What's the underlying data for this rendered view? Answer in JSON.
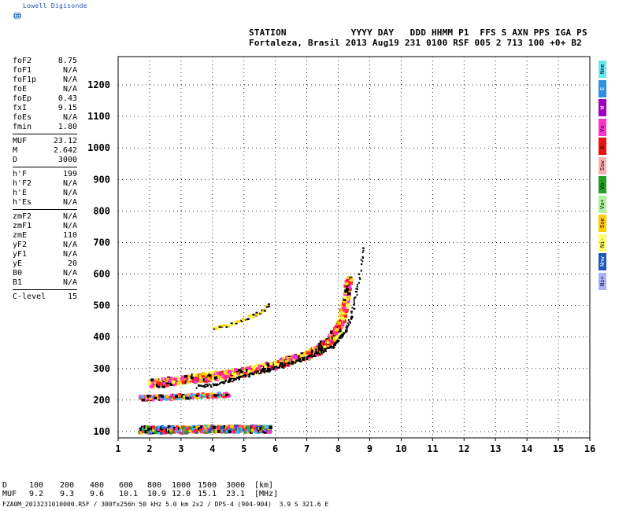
{
  "brand": {
    "name": "Lowell Digisonde",
    "globe_icon": "globe-icon"
  },
  "header": {
    "line1": "STATION            YYYY DAY   DDD HHMM P1  FFS S AXN PPS IGA PS",
    "line2": "Fortaleza, Brasil 2013 Aug19 231 0100 RSF 005 2 713 100 +0+ B2"
  },
  "params": [
    {
      "key": "foF2",
      "value": "8.75"
    },
    {
      "key": "foF1",
      "value": "N/A"
    },
    {
      "key": "foF1p",
      "value": "N/A"
    },
    {
      "key": "foE",
      "value": "N/A"
    },
    {
      "key": "foEp",
      "value": "0.43"
    },
    {
      "key": "fxI",
      "value": "9.15"
    },
    {
      "key": "foEs",
      "value": "N/A"
    },
    {
      "key": "fmin",
      "value": "1.80"
    },
    {
      "key": "SEP"
    },
    {
      "key": "MUF",
      "value": "23.12"
    },
    {
      "key": "M",
      "value": "2.642"
    },
    {
      "key": "D",
      "value": "3000"
    },
    {
      "key": "SEP"
    },
    {
      "key": "h'F",
      "value": "199"
    },
    {
      "key": "h'F2",
      "value": "N/A"
    },
    {
      "key": "h'E",
      "value": "N/A"
    },
    {
      "key": "h'Es",
      "value": "N/A"
    },
    {
      "key": "SEP"
    },
    {
      "key": "zmF2",
      "value": "N/A"
    },
    {
      "key": "zmF1",
      "value": "N/A"
    },
    {
      "key": "zmE",
      "value": "110"
    },
    {
      "key": "yF2",
      "value": "N/A"
    },
    {
      "key": "yF1",
      "value": "N/A"
    },
    {
      "key": "yE",
      "value": "20"
    },
    {
      "key": "B0",
      "value": "N/A"
    },
    {
      "key": "B1",
      "value": "N/A"
    },
    {
      "key": "SEP"
    },
    {
      "key": "C-level",
      "value": "15"
    }
  ],
  "muf_table": {
    "row1_label": "D",
    "row2_label": "MUF",
    "d_values": [
      "100",
      "200",
      "400",
      "600",
      "800",
      "1000",
      "1500",
      "3000"
    ],
    "muf_values": [
      "9.2",
      "9.3",
      "9.6",
      "10.1",
      "10.9",
      "12.0",
      "15.1",
      "23.1"
    ],
    "d_unit": "[km]",
    "muf_unit": "[MHz]"
  },
  "file_line": "FZA0M_2013231010000.RSF / 300fx256h 50 kHz 5.0 km 2x2 / DPS-4 (904-904)  3.9 S 321.6 E",
  "legend": [
    {
      "label": "Nne",
      "color": "#66e8f0"
    },
    {
      "label": "E",
      "color": "#2f8fe0"
    },
    {
      "label": "W",
      "color": "#a000c0"
    },
    {
      "label": "Vo-",
      "color": "#ff33cc"
    },
    {
      "label": "X-",
      "color": "#ee1111"
    },
    {
      "label": "Ssw",
      "color": "#ffb0b0"
    },
    {
      "label": "Vo-",
      "color": "#22a022"
    },
    {
      "label": "Vo+",
      "color": "#b0f0a0"
    },
    {
      "label": "Sse",
      "color": "#ffcc00"
    },
    {
      "label": "Ni-",
      "color": "#ffff66"
    },
    {
      "label": "Nnw",
      "color": "#2255bb"
    },
    {
      "label": "Ni+",
      "color": "#aab0ff"
    }
  ],
  "chart_data": {
    "type": "scatter",
    "title": "",
    "xlabel": "",
    "ylabel": "",
    "xlim": [
      1,
      16
    ],
    "ylim": [
      80,
      1290
    ],
    "xticks": [
      1,
      2,
      3,
      4,
      5,
      6,
      7,
      8,
      9,
      10,
      11,
      12,
      13,
      14,
      15,
      16
    ],
    "yticks": [
      100,
      200,
      300,
      400,
      500,
      600,
      700,
      800,
      900,
      1000,
      1100,
      1200
    ],
    "grid": true,
    "traces": [
      {
        "name": "",
        "layer": "E",
        "x": [
          1.7,
          2.0,
          2.5,
          3.0,
          3.5,
          4.0,
          4.5,
          5.0,
          5.5,
          5.8
        ],
        "y": [
          110,
          110,
          110,
          110,
          112,
          113,
          112,
          113,
          112,
          112
        ]
      },
      {
        "name": "",
        "layer": "F echo 200",
        "x": [
          1.7,
          2.0,
          2.5,
          3.0,
          3.5,
          4.0,
          4.5
        ],
        "y": [
          209,
          210,
          212,
          215,
          217,
          219,
          220
        ]
      },
      {
        "name": "",
        "layer": "F2 o-trace",
        "x": [
          2.0,
          2.5,
          3.0,
          3.5,
          4.0,
          4.5,
          5.0,
          5.5,
          6.0,
          6.5,
          7.0,
          7.3,
          7.5,
          7.7,
          7.9,
          8.0,
          8.1,
          8.2,
          8.3
        ],
        "y": [
          255,
          262,
          268,
          274,
          280,
          287,
          294,
          305,
          318,
          332,
          348,
          362,
          378,
          395,
          420,
          440,
          470,
          520,
          590
        ]
      },
      {
        "name": "",
        "layer": "F2 x-trace",
        "x": [
          3.5,
          4.0,
          4.5,
          5.0,
          5.5,
          6.0,
          6.5,
          7.0,
          7.4,
          7.8,
          8.0,
          8.2,
          8.4,
          8.6,
          8.8
        ],
        "y": [
          245,
          250,
          262,
          278,
          292,
          306,
          320,
          338,
          352,
          372,
          392,
          420,
          470,
          560,
          700
        ]
      },
      {
        "name": "",
        "layer": "F2 multihop",
        "x": [
          4.0,
          4.5,
          5.0,
          5.5,
          5.8
        ],
        "y": [
          430,
          440,
          458,
          480,
          505
        ]
      }
    ]
  }
}
